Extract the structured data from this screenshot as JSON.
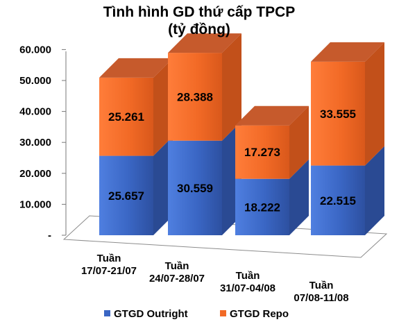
{
  "chart_data": {
    "type": "bar",
    "stacked": true,
    "three_d": true,
    "title": [
      "Tình hình GD thứ cấp TPCP",
      "(tỷ đồng)"
    ],
    "categories": [
      [
        "Tuần",
        "17/07-21/07"
      ],
      [
        "Tuần",
        "24/07-28/07"
      ],
      [
        "Tuần",
        "31/07-04/08"
      ],
      [
        "Tuần",
        "07/08-11/08"
      ]
    ],
    "series": [
      {
        "name": "GTGD Outright",
        "values": [
          25657,
          30559,
          18222,
          22515
        ],
        "labels": [
          "25.657",
          "30.559",
          "18.222",
          "22.515"
        ],
        "color": "#3a66c4"
      },
      {
        "name": "GTGD Repo",
        "values": [
          25261,
          28388,
          17273,
          33555
        ],
        "labels": [
          "25.261",
          "28.388",
          "17.273",
          "33.555"
        ],
        "color": "#f26a26"
      }
    ],
    "yticks": [
      "-",
      "10.000",
      "20.000",
      "30.000",
      "40.000",
      "50.000",
      "60.000"
    ],
    "ylim": [
      0,
      60000
    ],
    "legend_position": "bottom"
  }
}
